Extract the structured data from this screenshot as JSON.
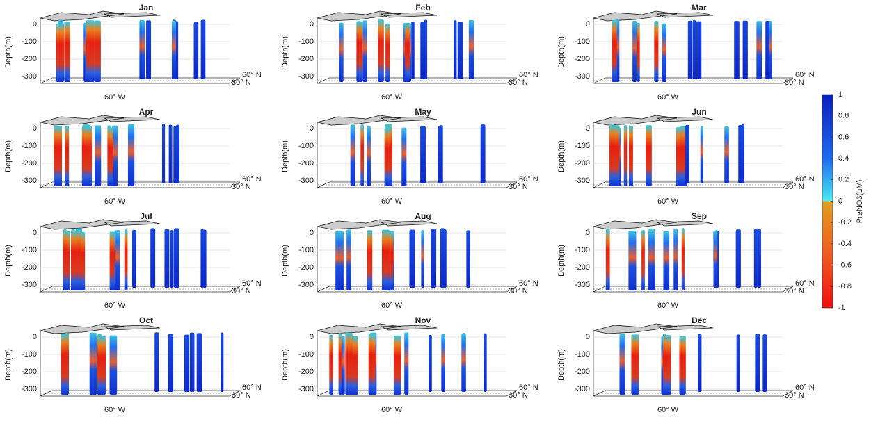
{
  "chart_data": [
    {
      "type": "profile3d",
      "title": "Jan",
      "ylabel": "Depth(m)",
      "ylim": [
        -340,
        20
      ],
      "yticks": [
        0,
        -100,
        -200,
        -300
      ],
      "xlabel": "60° W",
      "north_labels": [
        "60° N",
        "30° N"
      ]
    },
    {
      "type": "profile3d",
      "title": "Feb",
      "ylabel": "Depth(m)",
      "ylim": [
        -340,
        20
      ],
      "yticks": [
        0,
        -100,
        -200,
        -300
      ],
      "xlabel": "60° W",
      "north_labels": [
        "60° N",
        "30° N"
      ]
    },
    {
      "type": "profile3d",
      "title": "Mar",
      "ylabel": "Depth(m)",
      "ylim": [
        -340,
        20
      ],
      "yticks": [
        0,
        -100,
        -200,
        -300
      ],
      "xlabel": "60° W",
      "north_labels": [
        "60° N",
        "30° N"
      ]
    },
    {
      "type": "profile3d",
      "title": "Apr",
      "ylabel": "Depth(m)",
      "ylim": [
        -340,
        20
      ],
      "yticks": [
        0,
        -100,
        -200,
        -300
      ],
      "xlabel": "60° W",
      "north_labels": [
        "60° N",
        "30° N"
      ]
    },
    {
      "type": "profile3d",
      "title": "May",
      "ylabel": "Depth(m)",
      "ylim": [
        -340,
        20
      ],
      "yticks": [
        0,
        -100,
        -200,
        -300
      ],
      "xlabel": "60° W",
      "north_labels": [
        "60° N",
        "30° N"
      ]
    },
    {
      "type": "profile3d",
      "title": "Jun",
      "ylabel": "Depth(m)",
      "ylim": [
        -340,
        20
      ],
      "yticks": [
        0,
        -100,
        -200,
        -300
      ],
      "xlabel": "60° W",
      "north_labels": [
        "60° N",
        "30° N"
      ]
    },
    {
      "type": "profile3d",
      "title": "Jul",
      "ylabel": "Depth(m)",
      "ylim": [
        -340,
        20
      ],
      "yticks": [
        0,
        -100,
        -200,
        -300
      ],
      "xlabel": "60° W",
      "north_labels": [
        "60° N",
        "30° N"
      ]
    },
    {
      "type": "profile3d",
      "title": "Aug",
      "ylabel": "Depth(m)",
      "ylim": [
        -340,
        20
      ],
      "yticks": [
        0,
        -100,
        -200,
        -300
      ],
      "xlabel": "60° W",
      "north_labels": [
        "60° N",
        "30° N"
      ]
    },
    {
      "type": "profile3d",
      "title": "Sep",
      "ylabel": "Depth(m)",
      "ylim": [
        -340,
        20
      ],
      "yticks": [
        0,
        -100,
        -200,
        -300
      ],
      "xlabel": "60° W",
      "north_labels": [
        "60° N",
        "30° N"
      ]
    },
    {
      "type": "profile3d",
      "title": "Oct",
      "ylabel": "Depth(m)",
      "ylim": [
        -340,
        20
      ],
      "yticks": [
        0,
        -100,
        -200,
        -300
      ],
      "xlabel": "60° W",
      "north_labels": [
        "60° N",
        "30° N"
      ]
    },
    {
      "type": "profile3d",
      "title": "Nov",
      "ylabel": "Depth(m)",
      "ylim": [
        -340,
        20
      ],
      "yticks": [
        0,
        -100,
        -200,
        -300
      ],
      "xlabel": "60° W",
      "north_labels": [
        "60° N",
        "30° N"
      ]
    },
    {
      "type": "profile3d",
      "title": "Dec",
      "ylabel": "Depth(m)",
      "ylim": [
        -340,
        20
      ],
      "yticks": [
        0,
        -100,
        -200,
        -300
      ],
      "xlabel": "60° W",
      "north_labels": [
        "60° N",
        "30° N"
      ]
    },
    {
      "type": "colorbar",
      "label": "PreNO3(μM)",
      "ylim": [
        -1,
        1
      ],
      "yticks": [
        1,
        0.8,
        0.6,
        0.4,
        0.2,
        0,
        -0.2,
        -0.4,
        -0.6,
        -0.8,
        -1
      ]
    }
  ]
}
